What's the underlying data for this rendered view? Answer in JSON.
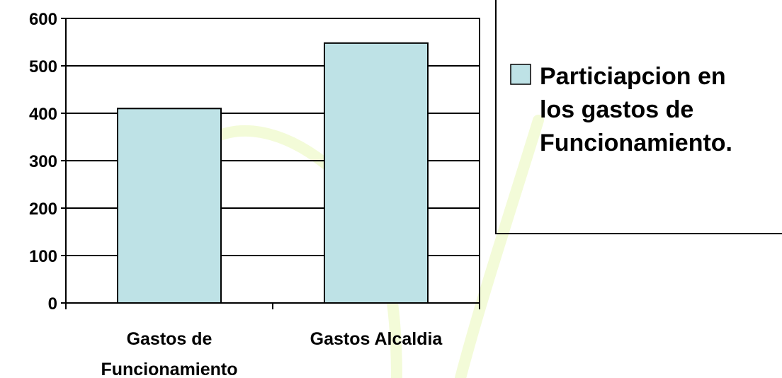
{
  "chart_data": {
    "type": "bar",
    "categories": [
      "Gastos de Funcionamiento",
      "Gastos Alcaldia"
    ],
    "category_label_lines": [
      [
        "Gastos de",
        "Funcionamiento"
      ],
      [
        "Gastos Alcaldia"
      ]
    ],
    "series": [
      {
        "name": "Particiapcion en los gastos de Funcionamiento.",
        "values": [
          410,
          548
        ]
      }
    ],
    "legend_lines": [
      "Particiapcion en",
      "los gastos de",
      "Funcionamiento."
    ],
    "yticks": [
      0,
      100,
      200,
      300,
      400,
      500,
      600
    ],
    "ylim": [
      0,
      600
    ],
    "grid": true,
    "legend_position": "right",
    "colors": {
      "bar_fill": "#BEE2E6",
      "bar_stroke": "#000000",
      "grid": "#000000",
      "background_curve": "#E9F8B8"
    }
  }
}
